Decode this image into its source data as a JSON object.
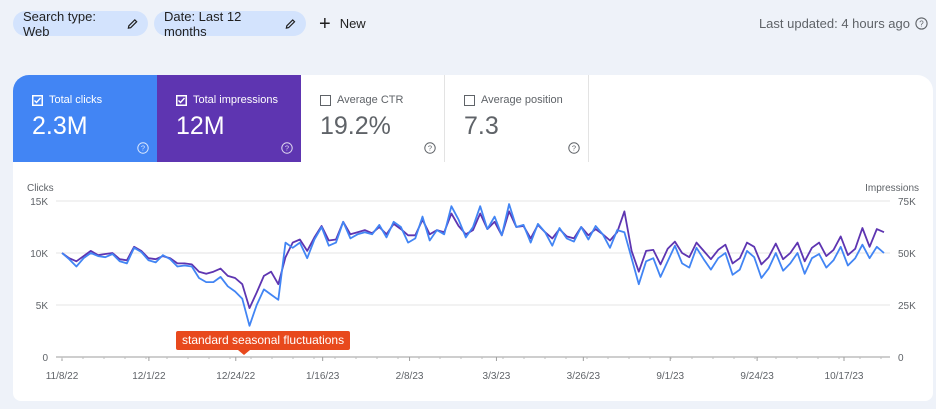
{
  "toolbar": {
    "search_type_chip": "Search type: Web",
    "date_chip": "Date: Last 12 months",
    "new_label": "New",
    "last_updated": "Last updated: 4 hours ago"
  },
  "metrics": [
    {
      "label": "Total clicks",
      "value": "2.3M",
      "checked": true,
      "color": "#4285f4"
    },
    {
      "label": "Total impressions",
      "value": "12M",
      "checked": true,
      "color": "#5e35b1"
    },
    {
      "label": "Average CTR",
      "value": "19.2%",
      "checked": false
    },
    {
      "label": "Average position",
      "value": "7.3",
      "checked": false
    }
  ],
  "annotation": "standard seasonal fluctuations",
  "chart_data": {
    "type": "line",
    "left_axis_label": "Clicks",
    "right_axis_label": "Impressions",
    "left_ticks": [
      "15K",
      "10K",
      "5K",
      "0"
    ],
    "right_ticks": [
      "75K",
      "50K",
      "25K",
      "0"
    ],
    "ylim_left": [
      0,
      15000
    ],
    "ylim_right": [
      0,
      75000
    ],
    "x_tick_labels": [
      "11/8/22",
      "12/1/22",
      "12/24/22",
      "1/16/23",
      "2/8/23",
      "3/3/23",
      "3/26/23",
      "9/1/23",
      "9/24/23",
      "10/17/23"
    ],
    "grid": true,
    "series": [
      {
        "name": "Clicks",
        "axis": "left",
        "color": "#4285f4",
        "values": [
          10000,
          9400,
          8700,
          9500,
          10000,
          9700,
          9600,
          9900,
          9200,
          9000,
          10500,
          10100,
          9300,
          9100,
          9800,
          9400,
          8700,
          8800,
          8700,
          7600,
          7200,
          7200,
          7700,
          6800,
          6300,
          5600,
          3000,
          5000,
          6500,
          6000,
          5500,
          11000,
          10500,
          11000,
          9500,
          11300,
          12500,
          10700,
          11000,
          13000,
          11400,
          11800,
          12000,
          11800,
          12700,
          11500,
          13000,
          12500,
          11000,
          11400,
          13500,
          11200,
          12200,
          11800,
          14500,
          13200,
          11500,
          12500,
          14500,
          12300,
          13500,
          11700,
          14700,
          12500,
          12700,
          11000,
          12800,
          12000,
          10700,
          12400,
          11400,
          11100,
          12500,
          11300,
          12600,
          11800,
          10500,
          12200,
          12000,
          9500,
          7000,
          9200,
          9500,
          7700,
          9200,
          10700,
          9000,
          8600,
          10500,
          9400,
          8400,
          9500,
          10000,
          7900,
          8400,
          10200,
          9600,
          7600,
          8500,
          10000,
          8300,
          9000,
          10000,
          8000,
          9500,
          9900,
          8600,
          9300,
          10600,
          8800,
          9500,
          10800,
          9500,
          10600,
          10000
        ]
      },
      {
        "name": "Impressions",
        "axis": "right",
        "color": "#5e35b1",
        "values": [
          50000,
          47500,
          46000,
          48500,
          51000,
          49000,
          49500,
          50000,
          47000,
          46500,
          53000,
          51000,
          47500,
          47000,
          48500,
          47500,
          45000,
          45000,
          44500,
          41000,
          40000,
          41000,
          42500,
          39000,
          38000,
          35000,
          23500,
          31000,
          39000,
          41000,
          35000,
          48000,
          55000,
          56500,
          51000,
          57500,
          63000,
          56000,
          56500,
          65000,
          59000,
          60000,
          61000,
          59500,
          62500,
          59000,
          64000,
          61500,
          58500,
          58500,
          66000,
          59000,
          61000,
          60000,
          69000,
          63000,
          59000,
          61000,
          69000,
          61500,
          65000,
          58500,
          70000,
          62500,
          63000,
          57000,
          63500,
          60000,
          57000,
          61500,
          58000,
          57000,
          62500,
          58500,
          61500,
          59000,
          56000,
          60000,
          70000,
          51000,
          41000,
          51000,
          51500,
          44500,
          52000,
          55500,
          50000,
          48000,
          55000,
          51000,
          47000,
          51500,
          54000,
          45000,
          47500,
          55000,
          53000,
          44500,
          48000,
          54500,
          47000,
          50000,
          55000,
          46000,
          52500,
          55000,
          48500,
          51500,
          58000,
          49000,
          52000,
          62000,
          53000,
          61500,
          60000
        ]
      }
    ]
  }
}
